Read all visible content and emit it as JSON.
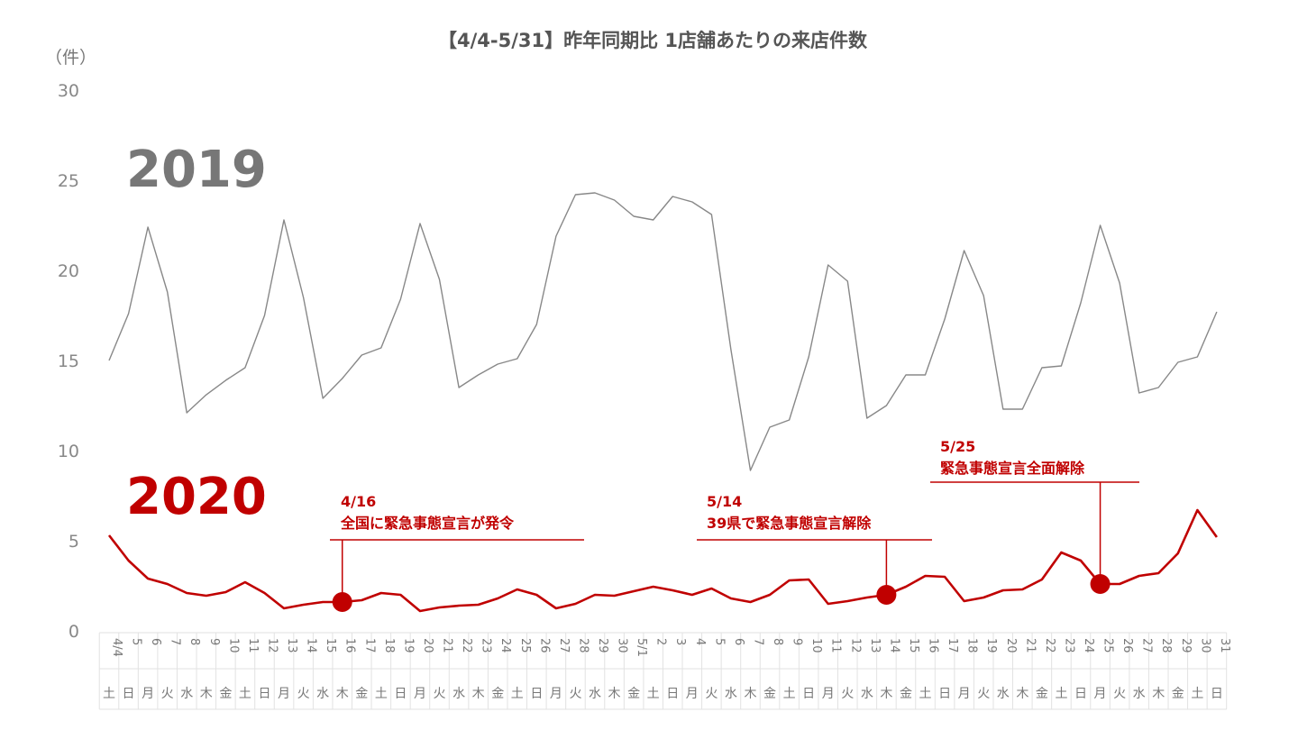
{
  "chart_data": {
    "type": "line",
    "title": "【4/4-5/31】昨年同期比 1店舗あたりの来店件数",
    "ylabel": "（件）",
    "ylim": [
      0,
      30
    ],
    "yticks": [
      "0",
      "5",
      "10",
      "15",
      "20",
      "25",
      "30"
    ],
    "day_labels": [
      "4/4",
      "5",
      "6",
      "7",
      "8",
      "9",
      "10",
      "11",
      "12",
      "13",
      "14",
      "15",
      "16",
      "17",
      "18",
      "19",
      "20",
      "21",
      "22",
      "23",
      "24",
      "25",
      "26",
      "27",
      "28",
      "29",
      "30",
      "5/1",
      "2",
      "3",
      "4",
      "5",
      "6",
      "7",
      "8",
      "9",
      "10",
      "11",
      "12",
      "13",
      "14",
      "15",
      "16",
      "17",
      "18",
      "19",
      "20",
      "21",
      "22",
      "23",
      "24",
      "25",
      "26",
      "27",
      "28",
      "29",
      "30",
      "31"
    ],
    "weekday_labels": [
      "土",
      "日",
      "月",
      "火",
      "水",
      "木",
      "金",
      "土",
      "日",
      "月",
      "火",
      "水",
      "木",
      "金",
      "土",
      "日",
      "月",
      "火",
      "水",
      "木",
      "金",
      "土",
      "日",
      "月",
      "火",
      "水",
      "木",
      "金",
      "土",
      "日",
      "月",
      "火",
      "水",
      "木",
      "金",
      "土",
      "日",
      "月",
      "火",
      "水",
      "木",
      "金",
      "土",
      "日",
      "月",
      "火",
      "水",
      "木",
      "金",
      "土",
      "日",
      "月",
      "火",
      "水",
      "木",
      "金",
      "土",
      "日"
    ],
    "series": [
      {
        "name": "2019",
        "color": "#888888",
        "values": [
          15.0,
          17.6,
          22.4,
          18.8,
          12.1,
          13.1,
          13.9,
          14.6,
          17.5,
          22.8,
          18.5,
          12.9,
          14.0,
          15.3,
          15.7,
          18.4,
          22.6,
          19.5,
          13.5,
          14.2,
          14.8,
          15.1,
          17.0,
          21.9,
          24.2,
          24.3,
          23.9,
          23.0,
          22.8,
          24.1,
          23.8,
          23.1,
          15.6,
          8.9,
          11.3,
          11.7,
          15.2,
          20.3,
          19.4,
          11.8,
          12.5,
          14.2,
          14.2,
          17.3,
          21.1,
          18.6,
          12.3,
          12.3,
          14.6,
          14.7,
          18.2,
          22.5,
          19.3,
          13.2,
          13.5,
          14.9,
          15.2,
          17.7
        ]
      },
      {
        "name": "2020",
        "color": "#c00000",
        "values": [
          5.3,
          3.9,
          2.9,
          2.6,
          2.1,
          1.95,
          2.15,
          2.7,
          2.1,
          1.25,
          1.45,
          1.6,
          1.6,
          1.7,
          2.1,
          2.0,
          1.1,
          1.3,
          1.4,
          1.45,
          1.8,
          2.3,
          2.0,
          1.25,
          1.5,
          2.0,
          1.95,
          2.2,
          2.45,
          2.25,
          2.0,
          2.35,
          1.8,
          1.6,
          2.0,
          2.8,
          2.85,
          1.5,
          1.65,
          1.85,
          2.0,
          2.45,
          3.05,
          3.0,
          1.65,
          1.85,
          2.25,
          2.3,
          2.85,
          4.35,
          3.9,
          2.6,
          2.6,
          3.05,
          3.2,
          4.3,
          6.7,
          5.2
        ]
      }
    ],
    "annotations": [
      {
        "day_index": 12,
        "date_text": "4/16",
        "text": "全国に緊急事態宣言が発令"
      },
      {
        "day_index": 40,
        "date_text": "5/14",
        "text": "39県で緊急事態宣言解除"
      },
      {
        "day_index": 51,
        "date_text": "5/25",
        "text": "緊急事態宣言全面解除"
      }
    ],
    "grid": false,
    "legend": "inline"
  }
}
